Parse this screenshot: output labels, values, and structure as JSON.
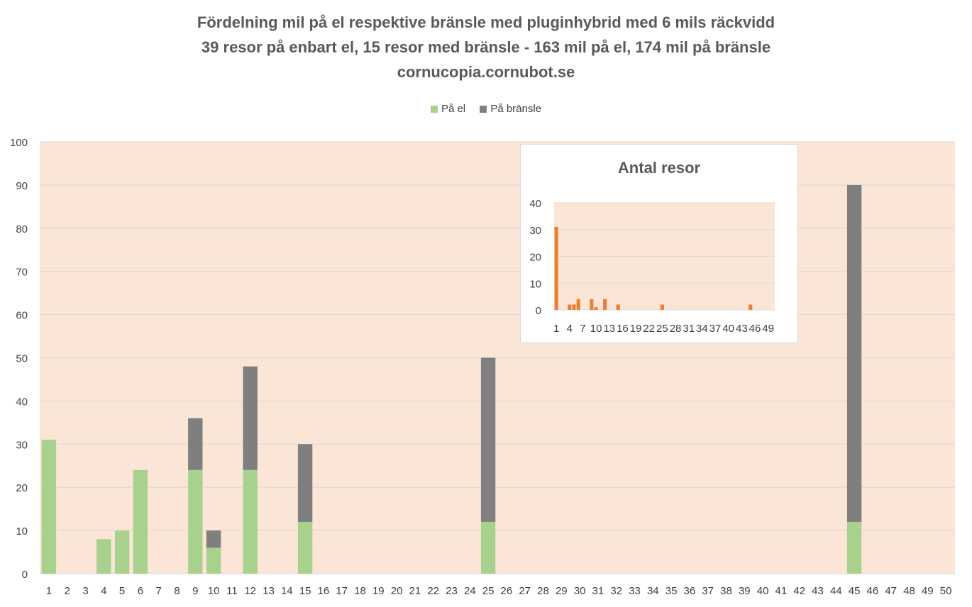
{
  "chart_data": [
    {
      "type": "bar",
      "stacked": true,
      "title_lines": [
        "Fördelning mil på el respektive bränsle med pluginhybrid med 6 mils räckvidd",
        "39 resor på enbart el, 15 resor med bränsle - 163 mil på el, 174 mil på bränsle",
        "cornucopia.cornubot.se"
      ],
      "categories": [
        "1",
        "2",
        "3",
        "4",
        "5",
        "6",
        "7",
        "8",
        "9",
        "10",
        "11",
        "12",
        "13",
        "14",
        "15",
        "16",
        "17",
        "18",
        "19",
        "20",
        "21",
        "22",
        "23",
        "24",
        "25",
        "26",
        "27",
        "28",
        "29",
        "30",
        "31",
        "32",
        "33",
        "34",
        "35",
        "36",
        "37",
        "38",
        "39",
        "40",
        "41",
        "42",
        "43",
        "44",
        "45",
        "46",
        "47",
        "48",
        "49",
        "50"
      ],
      "series": [
        {
          "name": "På el",
          "color": "#a9d18e",
          "values": [
            31,
            0,
            0,
            8,
            10,
            24,
            0,
            0,
            24,
            6,
            0,
            24,
            0,
            0,
            12,
            0,
            0,
            0,
            0,
            0,
            0,
            0,
            0,
            0,
            12,
            0,
            0,
            0,
            0,
            0,
            0,
            0,
            0,
            0,
            0,
            0,
            0,
            0,
            0,
            0,
            0,
            0,
            0,
            0,
            12,
            0,
            0,
            0,
            0,
            0
          ]
        },
        {
          "name": "På bränsle",
          "color": "#7f7f7f",
          "values": [
            0,
            0,
            0,
            0,
            0,
            0,
            0,
            0,
            12,
            4,
            0,
            24,
            0,
            0,
            18,
            0,
            0,
            0,
            0,
            0,
            0,
            0,
            0,
            0,
            38,
            0,
            0,
            0,
            0,
            0,
            0,
            0,
            0,
            0,
            0,
            0,
            0,
            0,
            0,
            0,
            0,
            0,
            0,
            0,
            78,
            0,
            0,
            0,
            0,
            0
          ]
        }
      ],
      "ylim": [
        0,
        100
      ],
      "yticks": [
        0,
        10,
        20,
        30,
        40,
        50,
        60,
        70,
        80,
        90,
        100
      ],
      "legend_position": "top",
      "plot_background": "#fbe5d6",
      "grid": true
    },
    {
      "type": "bar",
      "title": "Antal resor",
      "categories": [
        "1",
        "2",
        "3",
        "4",
        "5",
        "6",
        "7",
        "8",
        "9",
        "10",
        "11",
        "12",
        "13",
        "14",
        "15",
        "16",
        "17",
        "18",
        "19",
        "20",
        "21",
        "22",
        "23",
        "24",
        "25",
        "26",
        "27",
        "28",
        "29",
        "30",
        "31",
        "32",
        "33",
        "34",
        "35",
        "36",
        "37",
        "38",
        "39",
        "40",
        "41",
        "42",
        "43",
        "44",
        "45",
        "46",
        "47",
        "48",
        "49",
        "50"
      ],
      "visible_tick_labels": [
        "1",
        "4",
        "7",
        "10",
        "13",
        "16",
        "19",
        "22",
        "25",
        "28",
        "31",
        "34",
        "37",
        "40",
        "43",
        "46",
        "49"
      ],
      "series": [
        {
          "color": "#ed7d31",
          "values": [
            31,
            0,
            0,
            2,
            2,
            4,
            0,
            0,
            4,
            1,
            0,
            4,
            0,
            0,
            2,
            0,
            0,
            0,
            0,
            0,
            0,
            0,
            0,
            0,
            2,
            0,
            0,
            0,
            0,
            0,
            0,
            0,
            0,
            0,
            0,
            0,
            0,
            0,
            0,
            0,
            0,
            0,
            0,
            0,
            2,
            0,
            0,
            0,
            0,
            0
          ]
        }
      ],
      "ylim": [
        0,
        40
      ],
      "yticks": [
        0,
        10,
        20,
        30,
        40
      ],
      "plot_background": "#fbe5d6",
      "grid": true
    }
  ]
}
